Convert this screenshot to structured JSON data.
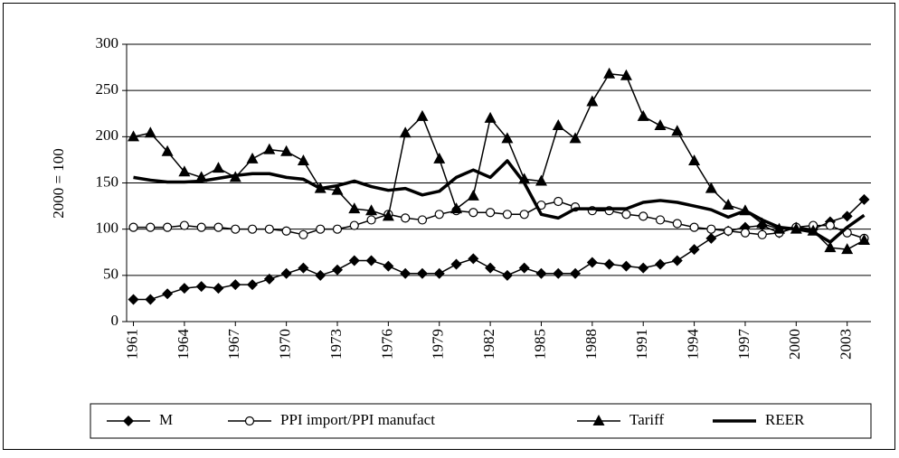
{
  "chart_data": {
    "type": "line",
    "y_label": "2000 = 100",
    "x": [
      1961,
      1962,
      1963,
      1964,
      1965,
      1966,
      1967,
      1968,
      1969,
      1970,
      1971,
      1972,
      1973,
      1974,
      1975,
      1976,
      1977,
      1978,
      1979,
      1980,
      1981,
      1982,
      1983,
      1984,
      1985,
      1986,
      1987,
      1988,
      1989,
      1990,
      1991,
      1992,
      1993,
      1994,
      1995,
      1996,
      1997,
      1998,
      1999,
      2000,
      2001,
      2002,
      2003,
      2004
    ],
    "xlim": [
      1960.6,
      2004.4
    ],
    "xticks": [
      1961,
      1964,
      1967,
      1970,
      1973,
      1976,
      1979,
      1982,
      1985,
      1988,
      1991,
      1994,
      1997,
      2000,
      2003
    ],
    "ylim": [
      0,
      300
    ],
    "yticks": [
      0,
      50,
      100,
      150,
      200,
      250,
      300
    ],
    "grid": true,
    "legend": "bottom",
    "series": [
      {
        "name": "M",
        "color": "#000000",
        "marker": "diamond",
        "line_width": 1.5,
        "values": [
          24,
          24,
          30,
          36,
          38,
          36,
          40,
          40,
          46,
          52,
          58,
          50,
          56,
          66,
          66,
          60,
          52,
          52,
          52,
          62,
          68,
          58,
          50,
          58,
          52,
          52,
          52,
          64,
          62,
          60,
          58,
          62,
          66,
          78,
          90,
          98,
          102,
          104,
          96,
          102,
          100,
          108,
          114,
          132
        ]
      },
      {
        "name": "PPI import/PPI manufact",
        "color": "#000000",
        "marker": "circle",
        "line_width": 1.5,
        "values": [
          102,
          102,
          102,
          104,
          102,
          102,
          100,
          100,
          100,
          98,
          94,
          100,
          100,
          104,
          110,
          116,
          112,
          110,
          116,
          120,
          118,
          118,
          116,
          116,
          126,
          130,
          124,
          120,
          120,
          116,
          114,
          110,
          106,
          102,
          100,
          98,
          96,
          94,
          96,
          102,
          104,
          104,
          96,
          90
        ]
      },
      {
        "name": "Tariff",
        "color": "#000000",
        "marker": "triangle",
        "line_width": 1.5,
        "values": [
          200,
          204,
          184,
          162,
          156,
          166,
          156,
          176,
          186,
          184,
          174,
          144,
          142,
          122,
          120,
          114,
          204,
          222,
          176,
          122,
          136,
          220,
          198,
          154,
          152,
          212,
          198,
          238,
          268,
          266,
          222,
          212,
          206,
          174,
          144,
          126,
          120,
          106,
          100,
          100,
          98,
          80,
          78,
          88
        ]
      },
      {
        "name": "REER",
        "color": "#000000",
        "marker": null,
        "line_width": 3.5,
        "values": [
          156,
          153,
          151,
          151,
          152,
          155,
          158,
          160,
          160,
          156,
          154,
          144,
          147,
          152,
          146,
          142,
          144,
          137,
          141,
          156,
          164,
          156,
          174,
          150,
          116,
          112,
          122,
          122,
          122,
          122,
          129,
          131,
          129,
          125,
          121,
          113,
          120,
          110,
          102,
          100,
          97,
          86,
          102,
          115
        ]
      }
    ]
  }
}
